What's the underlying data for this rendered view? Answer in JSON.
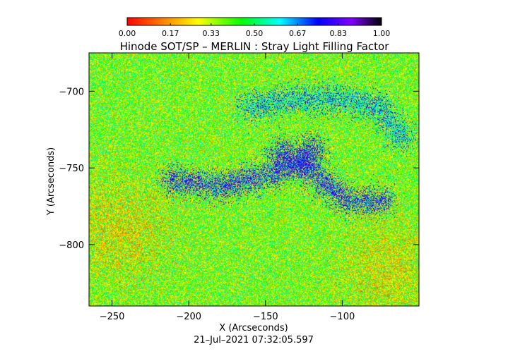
{
  "chart_data": {
    "type": "heatmap",
    "title": "Hinode SOT/SP – MERLIN : Stray Light Filling Factor",
    "xlabel": "X (Arcseconds)",
    "ylabel": "Y (Arcseconds)",
    "xlim": [
      -265,
      -50
    ],
    "ylim": [
      -840,
      -675
    ],
    "x_ticks": [
      -250,
      -200,
      -150,
      -100
    ],
    "x_tick_labels": [
      "−250",
      "−200",
      "−150",
      "−100"
    ],
    "y_ticks": [
      -700,
      -750,
      -800
    ],
    "y_tick_labels": [
      "−700",
      "−750",
      "−800"
    ],
    "colorbar": {
      "range": [
        0.0,
        1.0
      ],
      "ticks": [
        0.0,
        0.17,
        0.33,
        0.5,
        0.67,
        0.83,
        1.0
      ],
      "tick_labels": [
        "0.00",
        "0.17",
        "0.33",
        "0.50",
        "0.67",
        "0.83",
        "1.00"
      ],
      "colormap": [
        "#ff0000",
        "#ff7f00",
        "#ffff00",
        "#00ff00",
        "#00ffff",
        "#0000ff",
        "#7f00ff",
        "#000000"
      ]
    },
    "field": {
      "background_mean": 0.38,
      "noise_amplitude": 0.22,
      "high_value_regions": [
        {
          "name": "lower arc",
          "points": [
            [
              -210,
              -758
            ],
            [
              -180,
              -762
            ],
            [
              -150,
              -755
            ],
            [
              -128,
              -745
            ],
            [
              -112,
              -760
            ],
            [
              -95,
              -772
            ],
            [
              -75,
              -772
            ]
          ],
          "peak": 0.78
        },
        {
          "name": "upper ring",
          "points": [
            [
              -160,
              -710
            ],
            [
              -130,
              -705
            ],
            [
              -100,
              -705
            ],
            [
              -75,
              -710
            ],
            [
              -62,
              -730
            ]
          ],
          "peak": 0.66
        },
        {
          "name": "central cluster",
          "points": [
            [
              -140,
              -740
            ],
            [
              -130,
              -748
            ],
            [
              -120,
              -738
            ]
          ],
          "peak": 0.8
        }
      ],
      "low_value_regions": [
        {
          "name": "left",
          "center": [
            -245,
            -790
          ],
          "peak": 0.2
        },
        {
          "name": "lower right",
          "center": [
            -70,
            -815
          ],
          "peak": 0.22
        }
      ]
    },
    "grid": false,
    "legend": "none"
  },
  "timestamp": "21–Jul–2021 07:32:05.597"
}
